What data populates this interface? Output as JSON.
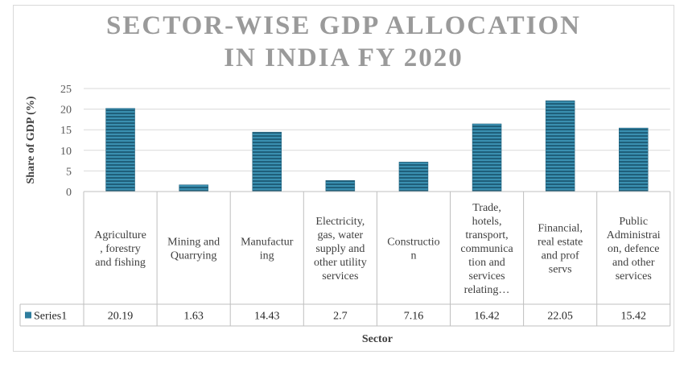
{
  "chart_data": {
    "type": "bar",
    "title": "SECTOR-WISE GDP ALLOCATION IN INDIA FY 2020",
    "title_lines": [
      "SECTOR-WISE GDP ALLOCATION",
      "IN INDIA FY 2020"
    ],
    "xlabel": "Sector",
    "ylabel": "Share of GDP (%)",
    "ylim": [
      0,
      25
    ],
    "yticks": [
      0,
      5,
      10,
      15,
      20,
      25
    ],
    "grid": true,
    "legend": "data-table",
    "bar_color": "#2e7d9e",
    "categories": [
      "Agriculture , forestry and fishing",
      "Mining and Quarrying",
      "Manufacturing",
      "Electricity, gas, water supply and other utility services",
      "Construction",
      "Trade, hotels, transport, communication and services relating…",
      "Financial, real estate and prof servs",
      "Public Administraion, defence and other services"
    ],
    "category_lines": [
      [
        "Agriculture",
        ", forestry",
        "and fishing"
      ],
      [
        "Mining and",
        "Quarrying"
      ],
      [
        "Manufactur",
        "ing"
      ],
      [
        "Electricity,",
        "gas, water",
        "supply and",
        "other utility",
        "services"
      ],
      [
        "Constructio",
        "n"
      ],
      [
        "Trade,",
        "hotels,",
        "transport,",
        "communica",
        "tion and",
        "services",
        "relating…"
      ],
      [
        "Financial,",
        "real estate",
        "and prof",
        "servs"
      ],
      [
        "Public",
        "Administrai",
        "on, defence",
        "and other",
        "services"
      ]
    ],
    "series": [
      {
        "name": "Series1",
        "values": [
          20.19,
          1.63,
          14.43,
          2.7,
          7.16,
          16.42,
          22.05,
          15.42
        ]
      }
    ],
    "value_labels": [
      "20.19",
      "1.63",
      "14.43",
      "2.7",
      "7.16",
      "16.42",
      "22.05",
      "15.42"
    ]
  }
}
